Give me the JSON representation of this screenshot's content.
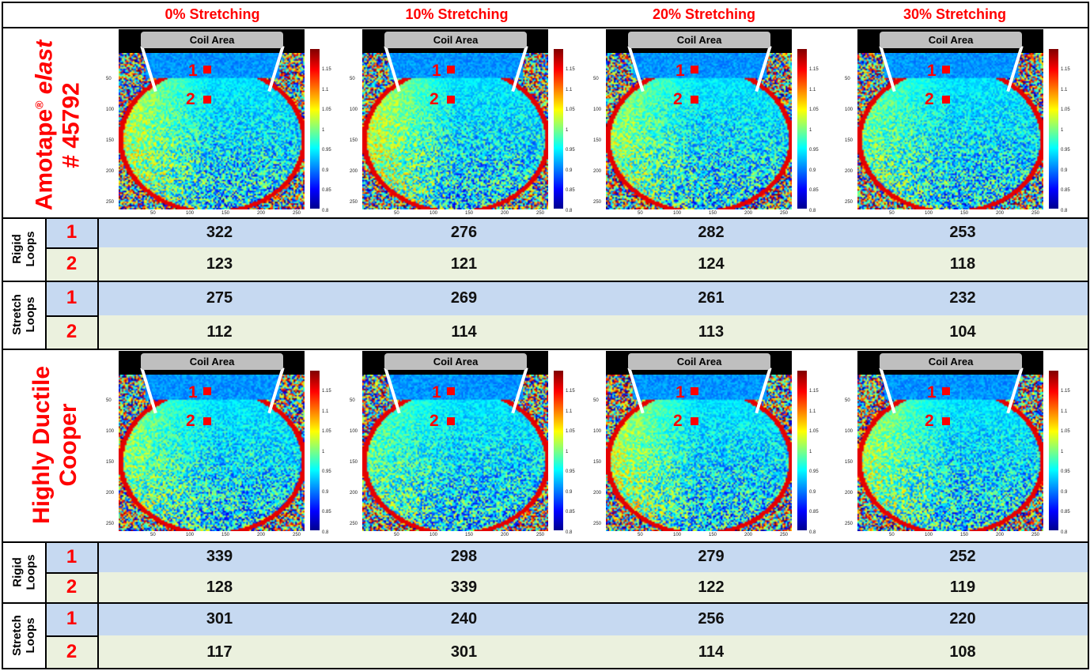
{
  "columns": [
    "0% Stretching",
    "10% Stretching",
    "20% Stretching",
    "30% Stretching"
  ],
  "materials": [
    {
      "name_line1": "Amotape",
      "name_reg": "®",
      "name_italic": "elast",
      "name_line2": "# 45792",
      "rigid": {
        "label_line1": "Rigid",
        "label_line2": "Loops",
        "rows": [
          {
            "id": "1",
            "values": [
              "322",
              "276",
              "282",
              "253"
            ]
          },
          {
            "id": "2",
            "values": [
              "123",
              "121",
              "124",
              "118"
            ]
          }
        ]
      },
      "stretch": {
        "label_line1": "Stretch",
        "label_line2": "Loops",
        "rows": [
          {
            "id": "1",
            "values": [
              "275",
              "269",
              "261",
              "232"
            ]
          },
          {
            "id": "2",
            "values": [
              "112",
              "114",
              "113",
              "104"
            ]
          }
        ]
      }
    },
    {
      "name_line1": "Highly Ductile",
      "name_line2": "Cooper",
      "rigid": {
        "label_line1": "Rigid",
        "label_line2": "Loops",
        "rows": [
          {
            "id": "1",
            "values": [
              "339",
              "298",
              "279",
              "252"
            ]
          },
          {
            "id": "2",
            "values": [
              "128",
              "339",
              "122",
              "119"
            ]
          }
        ]
      },
      "stretch": {
        "label_line1": "Stretch",
        "label_line2": "Loops",
        "rows": [
          {
            "id": "1",
            "values": [
              "301",
              "240",
              "256",
              "220"
            ]
          },
          {
            "id": "2",
            "values": [
              "117",
              "301",
              "114",
              "108"
            ]
          }
        ]
      }
    }
  ],
  "image": {
    "coil_label": "Coil Area",
    "marker1": "1",
    "marker2": "2",
    "colorbar_ticks": [
      "1.15",
      "1.1",
      "1.05",
      "1",
      "0.95",
      "0.9",
      "0.85",
      "0.8"
    ],
    "y_ticks": [
      "50",
      "100",
      "150",
      "200",
      "250"
    ],
    "x_ticks": [
      "50",
      "100",
      "150",
      "200",
      "250"
    ]
  },
  "colors": {
    "accent": "#ff0000",
    "blue_row": "#c6d9f1",
    "green_row": "#ebf1de"
  }
}
